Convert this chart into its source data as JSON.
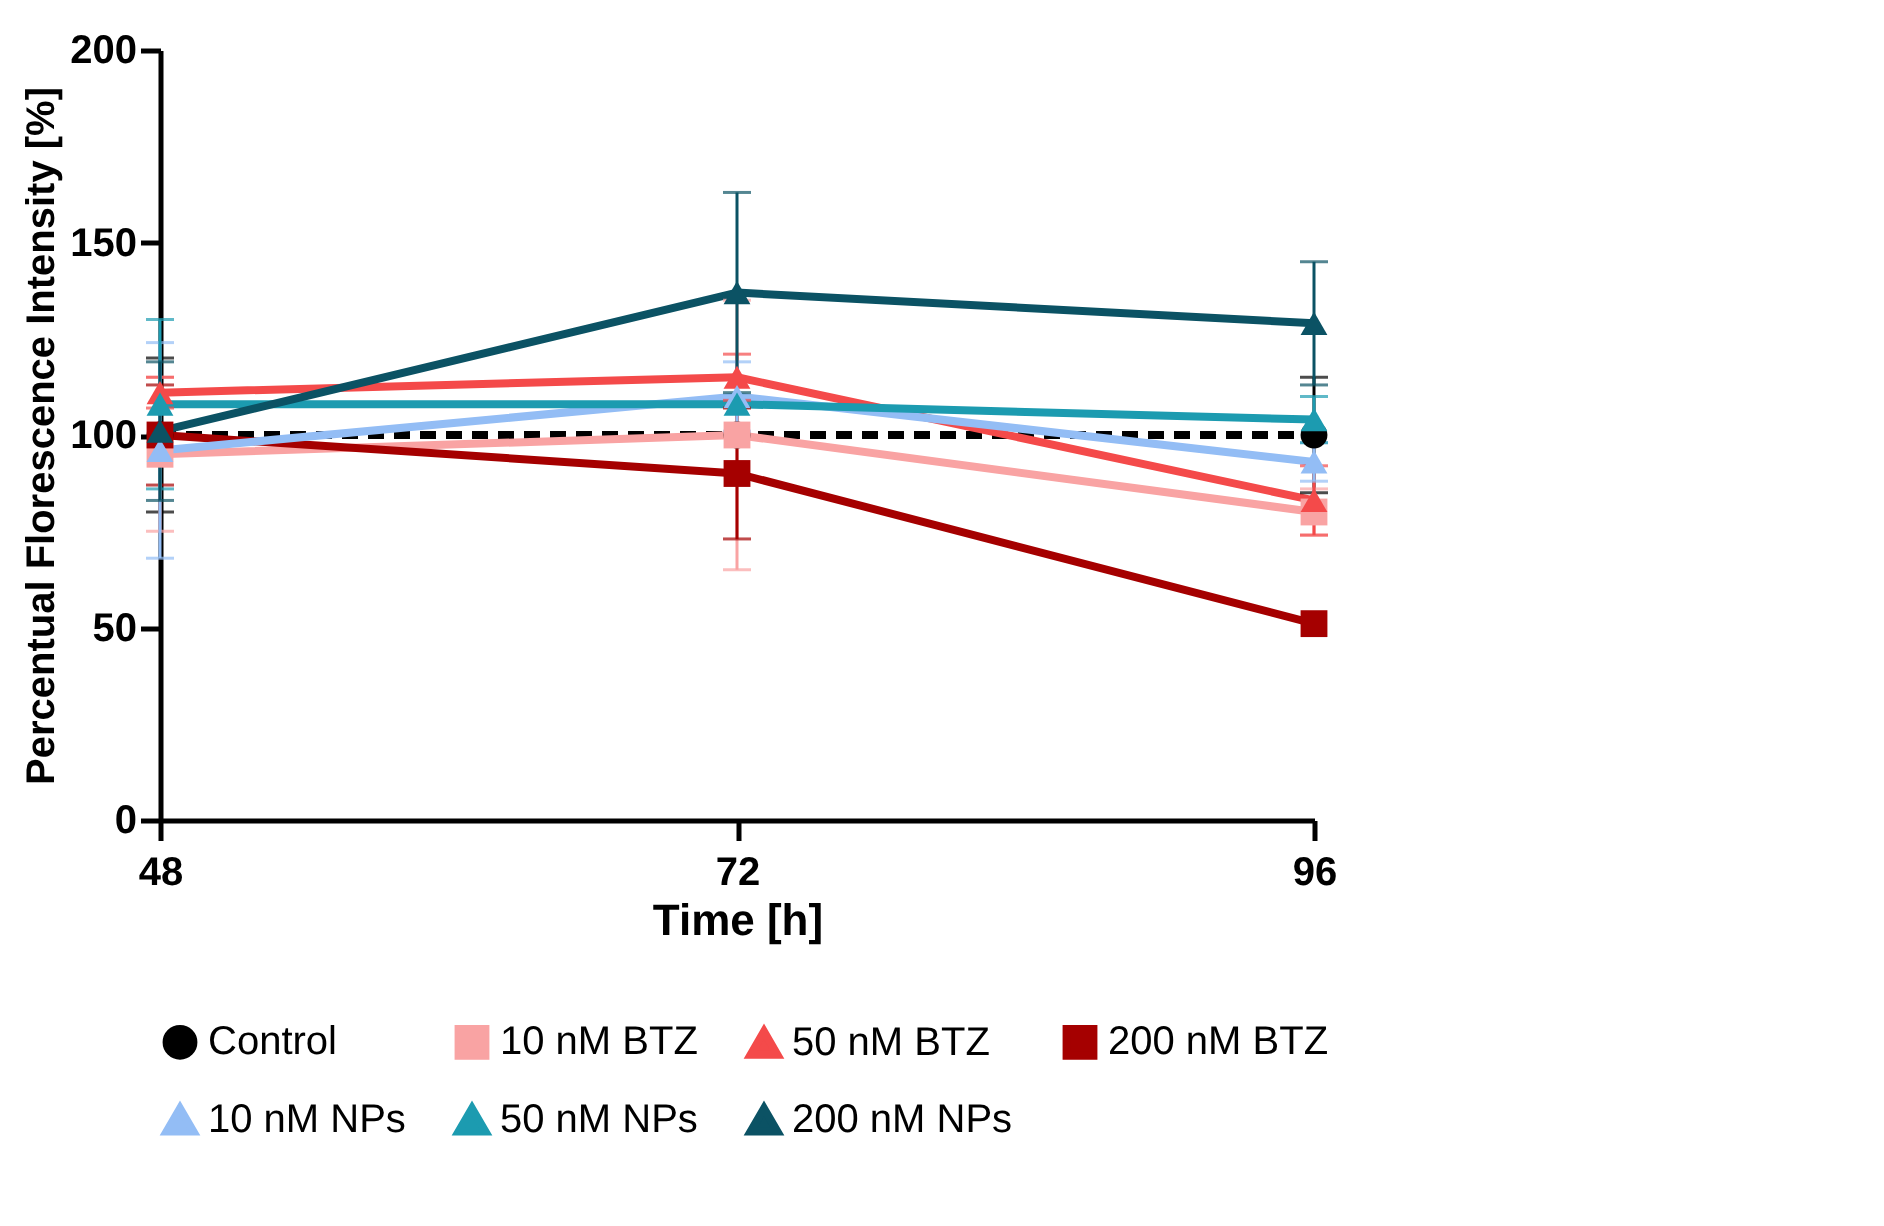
{
  "chart_data": {
    "type": "line",
    "xlabel": "Time [h]",
    "ylabel": "Percentual Florescence Intensity [%]",
    "x": [
      48,
      72,
      96
    ],
    "xlim": [
      48,
      96
    ],
    "xticks": [
      48,
      72,
      96
    ],
    "ylim": [
      0,
      200
    ],
    "yticks": [
      0,
      50,
      100,
      150,
      200
    ],
    "grid": false,
    "legend": "bottom",
    "series": [
      {
        "name": "Control",
        "color": "#000000",
        "marker": "circle",
        "line_style": "dashed",
        "values": [
          100,
          100,
          100
        ],
        "errors": [
          20,
          null,
          15
        ]
      },
      {
        "name": "10 nM BTZ",
        "color": "#f9a3a3",
        "marker": "square",
        "values": [
          95,
          100,
          80
        ],
        "errors": [
          20,
          35,
          6
        ]
      },
      {
        "name": "50 nM BTZ",
        "color": "#f44a4a",
        "marker": "triangle",
        "values": [
          111,
          115,
          83
        ],
        "errors": [
          4,
          6,
          9
        ]
      },
      {
        "name": "200 nM BTZ",
        "color": "#a50000",
        "marker": "square",
        "values": [
          100,
          90,
          51
        ],
        "errors": [
          13,
          17,
          null
        ]
      },
      {
        "name": "10 nM NPs",
        "color": "#93bdf5",
        "marker": "triangle",
        "values": [
          96,
          110,
          93
        ],
        "errors": [
          28,
          9,
          5
        ]
      },
      {
        "name": "50 nM NPs",
        "color": "#1c9bb0",
        "marker": "triangle",
        "values": [
          108,
          108,
          104
        ],
        "errors": [
          22,
          null,
          6
        ]
      },
      {
        "name": "200 nM NPs",
        "color": "#0b5264",
        "marker": "triangle",
        "values": [
          101,
          137,
          129
        ],
        "errors": [
          18,
          26,
          16
        ]
      }
    ]
  }
}
